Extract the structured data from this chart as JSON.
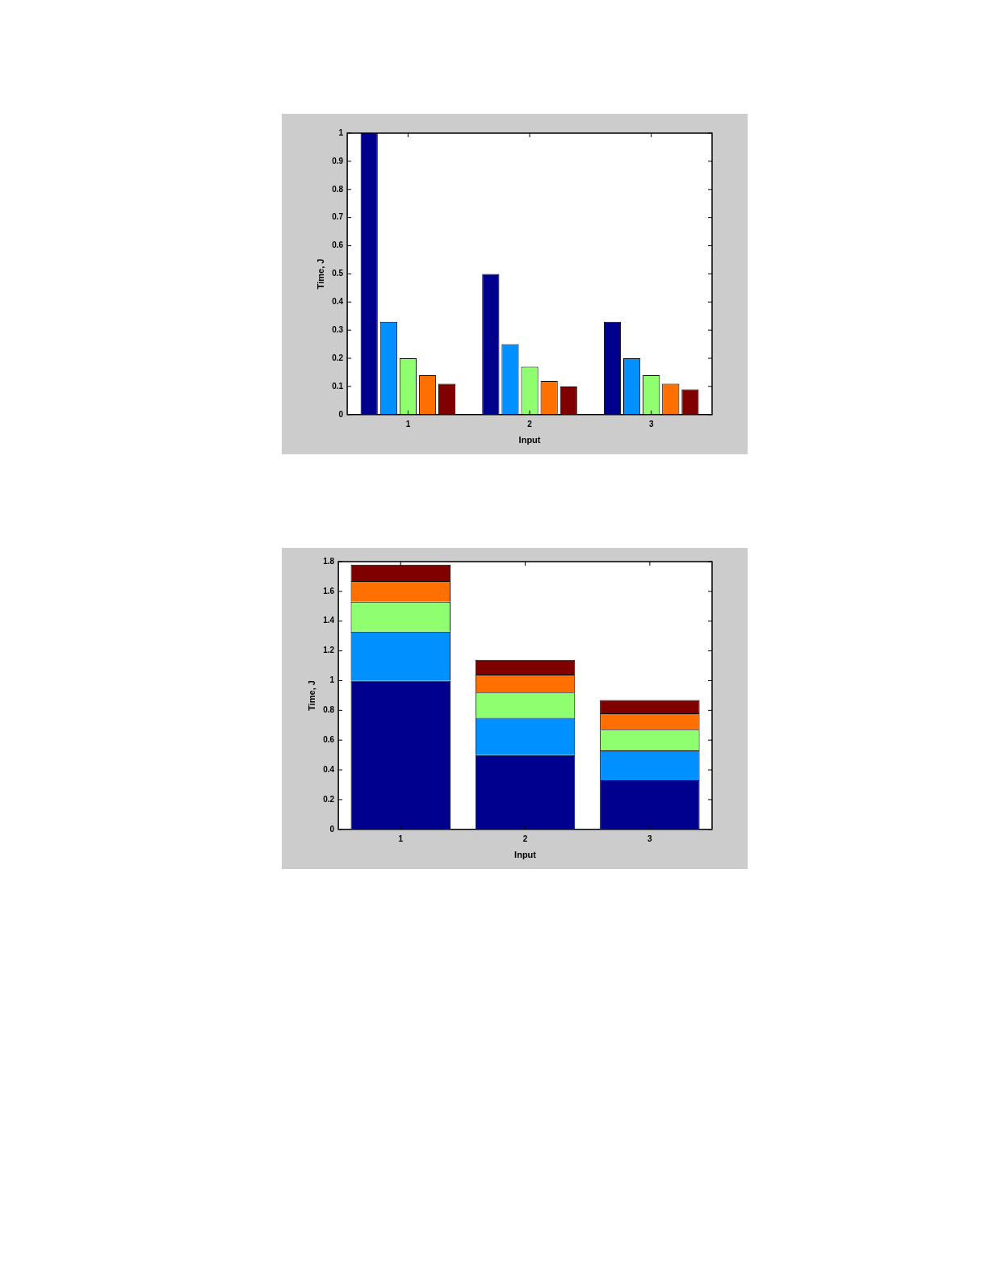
{
  "chart_data": [
    {
      "type": "bar",
      "xlabel": "Input",
      "ylabel": "Time, J",
      "categories": [
        "1",
        "2",
        "3"
      ],
      "series": [
        {
          "color": "#00008f",
          "values": [
            1,
            0.5,
            0.33
          ]
        },
        {
          "color": "#0090ff",
          "values": [
            0.33,
            0.25,
            0.2
          ]
        },
        {
          "color": "#8fff70",
          "values": [
            0.2,
            0.17,
            0.14
          ]
        },
        {
          "color": "#ff7000",
          "values": [
            0.14,
            0.12,
            0.11
          ]
        },
        {
          "color": "#800000",
          "values": [
            0.11,
            0.1,
            0.09
          ]
        }
      ],
      "ylim": [
        0,
        1
      ],
      "yticks": [
        0,
        0.1,
        0.2,
        0.3,
        0.4,
        0.5,
        0.6,
        0.7,
        0.8,
        0.9,
        1
      ],
      "grid": false,
      "legend": false
    },
    {
      "type": "bar",
      "stacked": true,
      "xlabel": "Input",
      "ylabel": "Time, J",
      "categories": [
        "1",
        "2",
        "3"
      ],
      "series": [
        {
          "color": "#00008f",
          "values": [
            1,
            0.5,
            0.33
          ]
        },
        {
          "color": "#0090ff",
          "values": [
            0.33,
            0.25,
            0.2
          ]
        },
        {
          "color": "#8fff70",
          "values": [
            0.2,
            0.17,
            0.14
          ]
        },
        {
          "color": "#ff7000",
          "values": [
            0.14,
            0.12,
            0.11
          ]
        },
        {
          "color": "#800000",
          "values": [
            0.11,
            0.1,
            0.09
          ]
        }
      ],
      "ylim": [
        0,
        1.8
      ],
      "yticks": [
        0,
        0.2,
        0.4,
        0.6,
        0.8,
        1,
        1.2,
        1.4,
        1.6,
        1.8
      ],
      "grid": false,
      "legend": false
    }
  ]
}
